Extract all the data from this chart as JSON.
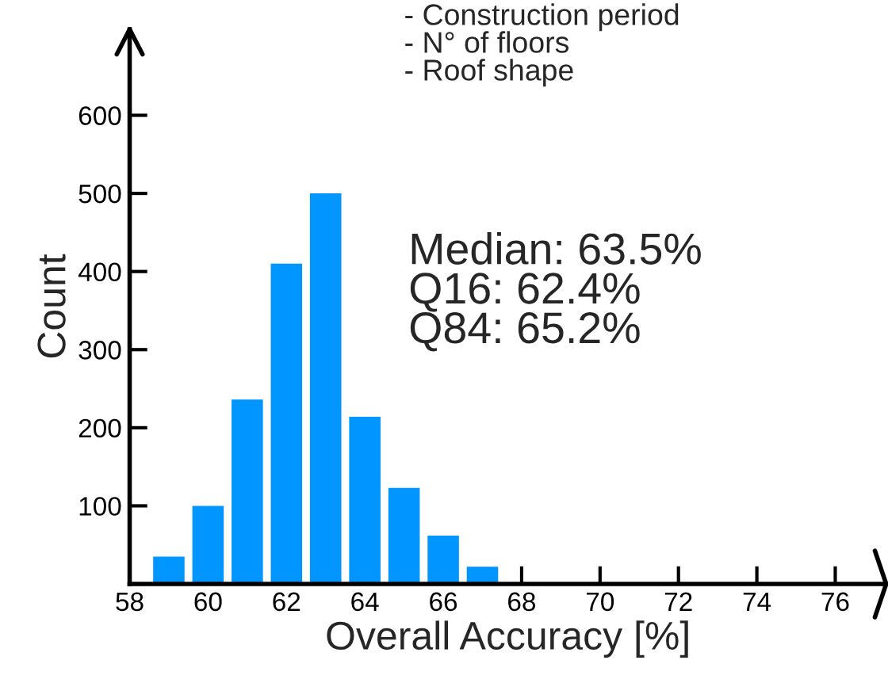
{
  "chart_data": {
    "type": "histogram",
    "xlabel": "Overall Accuracy [%]",
    "ylabel": "Count",
    "bins": [
      58.5,
      59.5,
      60.5,
      61.5,
      62.5,
      63.5,
      64.5,
      65.5,
      66.5,
      67.5
    ],
    "values": [
      35,
      100,
      236,
      410,
      500,
      214,
      123,
      62,
      22
    ],
    "color": "#0095ff",
    "xlim": [
      58,
      77.3
    ],
    "ylim": [
      0,
      710
    ],
    "xticks": [
      58,
      60,
      62,
      64,
      66,
      68,
      70,
      72,
      74,
      76
    ],
    "yticks": [
      {
        "value": 0,
        "label": null
      },
      100,
      200,
      300,
      400,
      500,
      600
    ],
    "grid": false,
    "annotations": [
      "- Construction period\n- N° of floors\n- Roof shape",
      "Median: 63.5%\nQ16: 62.4%\nQ84: 65.2%"
    ]
  }
}
